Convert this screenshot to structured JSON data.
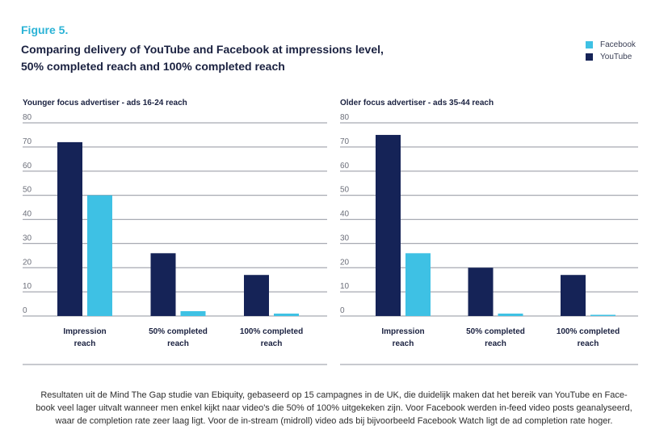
{
  "figure": {
    "label": "Figure 5.",
    "title_line1": "Comparing delivery of YouTube and Facebook at impressions level,",
    "title_line2": "50% completed reach and 100% completed reach"
  },
  "legend": [
    {
      "name": "Facebook",
      "color": "#3ec1e4"
    },
    {
      "name": "YouTube",
      "color": "#152357"
    }
  ],
  "chart_data": [
    {
      "type": "bar",
      "title": "Younger focus advertiser - ads 16-24 reach",
      "categories": [
        [
          "Impression",
          "reach"
        ],
        [
          "50% completed",
          "reach"
        ],
        [
          "100% completed",
          "reach"
        ]
      ],
      "series": [
        {
          "name": "YouTube",
          "values": [
            72,
            26,
            17
          ]
        },
        {
          "name": "Facebook",
          "values": [
            50,
            2,
            1
          ]
        }
      ],
      "yticks": [
        0,
        10,
        20,
        30,
        40,
        50,
        60,
        70,
        80
      ],
      "ylim": [
        0,
        80
      ]
    },
    {
      "type": "bar",
      "title": "Older focus advertiser - ads 35-44 reach",
      "categories": [
        [
          "Impression",
          "reach"
        ],
        [
          "50% completed",
          "reach"
        ],
        [
          "100% completed",
          "reach"
        ]
      ],
      "series": [
        {
          "name": "YouTube",
          "values": [
            75,
            20,
            17
          ]
        },
        {
          "name": "Facebook",
          "values": [
            26,
            1,
            0.5
          ]
        }
      ],
      "yticks": [
        0,
        10,
        20,
        30,
        40,
        50,
        60,
        70,
        80
      ],
      "ylim": [
        0,
        80
      ]
    }
  ],
  "caption": {
    "line1": "Resultaten uit de Mind The Gap studie van Ebiquity, gebaseerd op 15 campagnes in de UK, die duidelijk maken dat het bereik van YouTube en Face-",
    "line2": "book veel lager uitvalt wanneer men enkel kijkt naar video's die 50% of 100% uitgekeken zijn. Voor Facebook werden in-feed video posts geanalyseerd,",
    "line3": "waar de completion rate zeer laag ligt. Voor de in-stream (midroll) video ads bij bijvoorbeeld Facebook Watch ligt de ad completion rate hoger."
  }
}
